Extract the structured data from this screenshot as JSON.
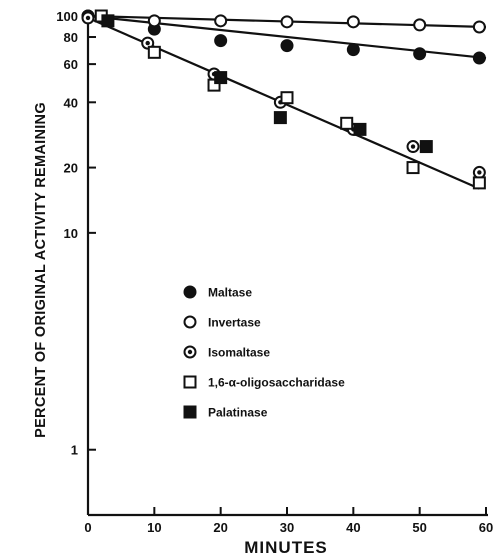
{
  "chart_data": {
    "type": "scatter",
    "y_scale": "log",
    "xlabel": "MINUTES",
    "ylabel": "PERCENT OF ORIGINAL ACTIVITY REMAINING",
    "xlim": [
      0,
      60
    ],
    "ylim": [
      0.5,
      100
    ],
    "x_ticks": [
      0,
      10,
      20,
      30,
      40,
      50,
      60
    ],
    "x_tick_labels": [
      "0",
      "10",
      "20",
      "30",
      "40",
      "50",
      "60"
    ],
    "y_ticks": [
      1,
      10,
      20,
      40,
      60,
      80,
      100
    ],
    "y_tick_labels": [
      "1",
      "10",
      "20",
      "40",
      "60",
      "80",
      "100"
    ],
    "grid": false,
    "legend_placement": "center",
    "series": [
      {
        "name": "Maltase",
        "marker": "filled-circle",
        "points": [
          [
            0,
            100
          ],
          [
            10,
            87
          ],
          [
            20,
            77
          ],
          [
            30,
            73
          ],
          [
            40,
            70
          ],
          [
            50,
            67
          ],
          [
            59,
            64
          ]
        ]
      },
      {
        "name": "Invertase",
        "marker": "open-circle",
        "points": [
          [
            0,
            100
          ],
          [
            10,
            95
          ],
          [
            20,
            95
          ],
          [
            30,
            94
          ],
          [
            40,
            94
          ],
          [
            50,
            91
          ],
          [
            59,
            89
          ]
        ]
      },
      {
        "name": "Isomaltase",
        "marker": "dotted-circle",
        "points": [
          [
            0,
            98
          ],
          [
            9,
            75
          ],
          [
            19,
            54
          ],
          [
            29,
            40
          ],
          [
            40,
            30
          ],
          [
            49,
            25
          ],
          [
            59,
            19
          ]
        ]
      },
      {
        "name": "1,6-α-oligosaccharidase",
        "marker": "open-square",
        "points": [
          [
            2,
            100
          ],
          [
            10,
            68
          ],
          [
            19,
            48
          ],
          [
            30,
            42
          ],
          [
            39,
            32
          ],
          [
            49,
            20
          ],
          [
            59,
            17
          ]
        ]
      },
      {
        "name": "Palatinase",
        "marker": "filled-square",
        "points": [
          [
            3,
            95
          ],
          [
            20,
            52
          ],
          [
            29,
            34
          ],
          [
            41,
            30
          ],
          [
            51,
            25
          ]
        ]
      }
    ],
    "fit_lines": [
      {
        "from": [
          0,
          100
        ],
        "to": [
          60,
          64
        ]
      },
      {
        "from": [
          0,
          100
        ],
        "to": [
          60,
          89
        ]
      },
      {
        "from": [
          0,
          98
        ],
        "to": [
          59,
          16
        ]
      }
    ]
  }
}
